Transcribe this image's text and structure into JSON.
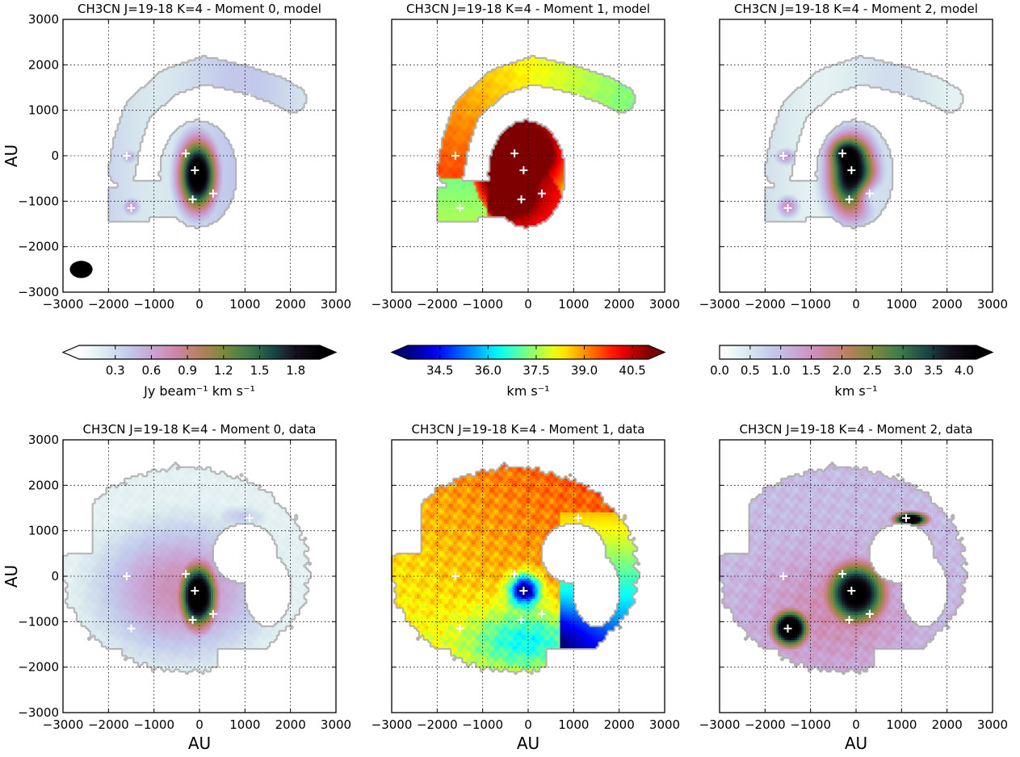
{
  "figure": {
    "panel_titles": [
      "CH3CN J=19-18 K=4 - Moment 0, model",
      "CH3CN J=19-18 K=4 - Moment 1, model",
      "CH3CN J=19-18 K=4 - Moment 2, model",
      "CH3CN J=19-18 K=4 - Moment 0, data",
      "CH3CN J=19-18 K=4 - Moment 1, data",
      "CH3CN J=19-18 K=4 - Moment 2, data"
    ],
    "xlabel": "AU",
    "ylabel": "AU",
    "colorbar_labels": [
      "Jy beam⁻¹ km s⁻¹",
      "km s⁻¹",
      "km s⁻¹"
    ]
  },
  "chart_data": {
    "type": "heatmap",
    "xlim": [
      -3000,
      3000
    ],
    "ylim": [
      -3000,
      3000
    ],
    "xticks": [
      -3000,
      -2000,
      -1000,
      0,
      1000,
      2000,
      3000
    ],
    "yticks": [
      -3000,
      -2000,
      -1000,
      0,
      1000,
      2000,
      3000
    ],
    "xtick_labels": [
      "−3000",
      "−2000",
      "−1000",
      "0",
      "1000",
      "2000",
      "3000"
    ],
    "ytick_labels": [
      "−3000",
      "−2000",
      "−1000",
      "0",
      "1000",
      "2000",
      "3000"
    ],
    "grid": true,
    "source_markers": [
      [
        -1600,
        0
      ],
      [
        -1500,
        -1150
      ],
      [
        -300,
        50
      ],
      [
        -100,
        -320
      ],
      [
        -150,
        -960
      ],
      [
        300,
        -830
      ],
      [
        1100,
        1280
      ]
    ],
    "beam": {
      "x": -2600,
      "y": -2500,
      "major": 500,
      "minor": 380
    },
    "colorbars": [
      {
        "label": "Jy beam⁻¹ km s⁻¹",
        "ticks": [
          0.3,
          0.6,
          0.9,
          1.2,
          1.5,
          1.8
        ],
        "tick_labels": [
          "0.3",
          "0.6",
          "0.9",
          "1.2",
          "1.5",
          "1.8"
        ],
        "range": [
          0.0,
          2.0
        ],
        "extend": "both",
        "cmap": "cubehelix_r"
      },
      {
        "label": "km s⁻¹",
        "ticks": [
          34.5,
          36.0,
          37.5,
          39.0,
          40.5
        ],
        "tick_labels": [
          "34.5",
          "36.0",
          "37.5",
          "39.0",
          "40.5"
        ],
        "range": [
          33.5,
          41.0
        ],
        "extend": "both",
        "cmap": "jet"
      },
      {
        "label": "km s⁻¹",
        "ticks": [
          0.0,
          0.5,
          1.0,
          1.5,
          2.0,
          2.5,
          3.0,
          3.5,
          4.0
        ],
        "tick_labels": [
          "0.0",
          "0.5",
          "1.0",
          "1.5",
          "2.0",
          "2.5",
          "3.0",
          "3.5",
          "4.0"
        ],
        "range": [
          0.0,
          4.2
        ],
        "extend": "max",
        "cmap": "cubehelix_r"
      }
    ],
    "panels": [
      {
        "moment": 0,
        "source": "model",
        "title": "CH3CN J=19-18 K=4 - Moment 0, model"
      },
      {
        "moment": 1,
        "source": "model",
        "title": "CH3CN J=19-18 K=4 - Moment 1, model"
      },
      {
        "moment": 2,
        "source": "model",
        "title": "CH3CN J=19-18 K=4 - Moment 2, model"
      },
      {
        "moment": 0,
        "source": "data",
        "title": "CH3CN J=19-18 K=4 - Moment 0, data"
      },
      {
        "moment": 1,
        "source": "data",
        "title": "CH3CN J=19-18 K=4 - Moment 1, data"
      },
      {
        "moment": 2,
        "source": "data",
        "title": "CH3CN J=19-18 K=4 - Moment 2, data"
      }
    ]
  },
  "colors": {
    "cubehelix_r": [
      "#ffffff",
      "#dcecee",
      "#c3cbec",
      "#c9a6d6",
      "#cf86a8",
      "#b8805e",
      "#7b8a3c",
      "#3f7b4a",
      "#1b4a46",
      "#150f1c",
      "#000000"
    ],
    "jet": [
      "#00007f",
      "#0000ff",
      "#007fff",
      "#00ffff",
      "#7fff7f",
      "#ffff00",
      "#ff7f00",
      "#ff0000",
      "#7f0000"
    ],
    "outline": "#aaaaaa",
    "grid": "#000000",
    "marker": "#ffffff"
  }
}
